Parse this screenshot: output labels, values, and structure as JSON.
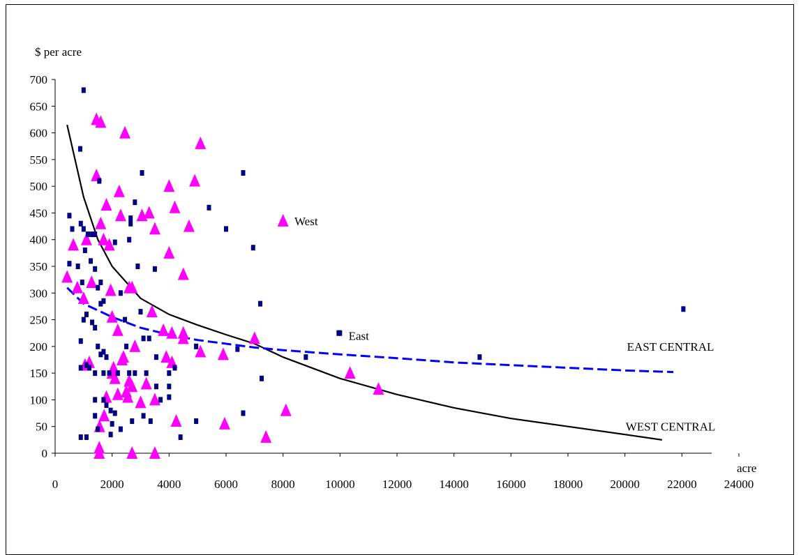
{
  "chart_data": {
    "type": "scatter",
    "ylabel": "$ per acre",
    "xlabel": "acre",
    "xlim": [
      0,
      24000
    ],
    "ylim": [
      0,
      700
    ],
    "x_ticks": [
      "0",
      "2000",
      "4000",
      "6000",
      "8000",
      "10000",
      "12000",
      "14000",
      "16000",
      "18000",
      "20000",
      "22000",
      "24000"
    ],
    "y_ticks": [
      "0",
      "50",
      "100",
      "150",
      "200",
      "250",
      "300",
      "350",
      "400",
      "450",
      "500",
      "550",
      "600",
      "650",
      "700"
    ],
    "grid": false,
    "legend_labels": [
      {
        "name": "West",
        "position": "upper-middle"
      },
      {
        "name": "East",
        "position": "middle"
      }
    ],
    "series": [
      {
        "name": "West",
        "marker": "triangle",
        "color": "#ff00ff",
        "points": [
          [
            420,
            330
          ],
          [
            640,
            390
          ],
          [
            780,
            310
          ],
          [
            1000,
            290
          ],
          [
            1100,
            400
          ],
          [
            1050,
            165
          ],
          [
            1200,
            170
          ],
          [
            1280,
            320
          ],
          [
            1450,
            625
          ],
          [
            1450,
            520
          ],
          [
            1600,
            620
          ],
          [
            1600,
            430
          ],
          [
            1700,
            400
          ],
          [
            1800,
            465
          ],
          [
            1900,
            390
          ],
          [
            1950,
            305
          ],
          [
            2000,
            255
          ],
          [
            1550,
            10
          ],
          [
            1550,
            0
          ],
          [
            1560,
            50
          ],
          [
            1720,
            70
          ],
          [
            1800,
            105
          ],
          [
            2000,
            150
          ],
          [
            2050,
            160
          ],
          [
            2100,
            140
          ],
          [
            2200,
            230
          ],
          [
            2250,
            490
          ],
          [
            2300,
            445
          ],
          [
            2350,
            175
          ],
          [
            2200,
            110
          ],
          [
            2400,
            180
          ],
          [
            2450,
            600
          ],
          [
            2500,
            115
          ],
          [
            2550,
            105
          ],
          [
            2600,
            310
          ],
          [
            2700,
            310
          ],
          [
            2600,
            135
          ],
          [
            2700,
            125
          ],
          [
            2700,
            0
          ],
          [
            2800,
            200
          ],
          [
            3000,
            95
          ],
          [
            3050,
            445
          ],
          [
            3200,
            130
          ],
          [
            3300,
            450
          ],
          [
            3400,
            265
          ],
          [
            3500,
            420
          ],
          [
            3500,
            100
          ],
          [
            3500,
            0
          ],
          [
            3800,
            230
          ],
          [
            3900,
            180
          ],
          [
            4000,
            500
          ],
          [
            4000,
            375
          ],
          [
            4100,
            170
          ],
          [
            4100,
            225
          ],
          [
            4200,
            460
          ],
          [
            4250,
            60
          ],
          [
            4500,
            335
          ],
          [
            4500,
            225
          ],
          [
            4500,
            215
          ],
          [
            4700,
            425
          ],
          [
            4900,
            510
          ],
          [
            5100,
            580
          ],
          [
            5100,
            190
          ],
          [
            5900,
            185
          ],
          [
            5950,
            55
          ],
          [
            7000,
            215
          ],
          [
            7400,
            30
          ],
          [
            8100,
            80
          ],
          [
            10350,
            150
          ],
          [
            11350,
            120
          ]
        ]
      },
      {
        "name": "East",
        "marker": "square",
        "color": "#000080",
        "points": [
          [
            1000,
            680
          ],
          [
            880,
            570
          ],
          [
            500,
            445
          ],
          [
            600,
            420
          ],
          [
            800,
            350
          ],
          [
            900,
            430
          ],
          [
            1000,
            420
          ],
          [
            1150,
            410
          ],
          [
            1300,
            410
          ],
          [
            1400,
            410
          ],
          [
            1050,
            380
          ],
          [
            1250,
            360
          ],
          [
            1400,
            345
          ],
          [
            500,
            355
          ],
          [
            950,
            320
          ],
          [
            1500,
            310
          ],
          [
            1600,
            320
          ],
          [
            1700,
            285
          ],
          [
            1600,
            280
          ],
          [
            1100,
            260
          ],
          [
            1000,
            250
          ],
          [
            1300,
            245
          ],
          [
            900,
            210
          ],
          [
            1400,
            235
          ],
          [
            1500,
            200
          ],
          [
            1700,
            190
          ],
          [
            1600,
            185
          ],
          [
            1800,
            180
          ],
          [
            1400,
            150
          ],
          [
            1700,
            150
          ],
          [
            1900,
            150
          ],
          [
            900,
            160
          ],
          [
            1100,
            165
          ],
          [
            1200,
            160
          ],
          [
            1400,
            100
          ],
          [
            1700,
            100
          ],
          [
            1800,
            90
          ],
          [
            1950,
            80
          ],
          [
            2000,
            55
          ],
          [
            1950,
            35
          ],
          [
            1400,
            70
          ],
          [
            1500,
            45
          ],
          [
            900,
            30
          ],
          [
            1100,
            30
          ],
          [
            2100,
            75
          ],
          [
            2300,
            45
          ],
          [
            1550,
            510
          ],
          [
            2100,
            395
          ],
          [
            2650,
            430
          ],
          [
            2650,
            440
          ],
          [
            2600,
            400
          ],
          [
            2800,
            470
          ],
          [
            2900,
            350
          ],
          [
            3050,
            525
          ],
          [
            2300,
            300
          ],
          [
            2450,
            250
          ],
          [
            2500,
            200
          ],
          [
            2200,
            150
          ],
          [
            2600,
            150
          ],
          [
            2800,
            150
          ],
          [
            3000,
            265
          ],
          [
            3100,
            215
          ],
          [
            3300,
            215
          ],
          [
            3200,
            150
          ],
          [
            3500,
            345
          ],
          [
            3550,
            180
          ],
          [
            3550,
            125
          ],
          [
            3700,
            100
          ],
          [
            4000,
            150
          ],
          [
            4000,
            125
          ],
          [
            4000,
            105
          ],
          [
            4200,
            160
          ],
          [
            3350,
            60
          ],
          [
            3100,
            70
          ],
          [
            2700,
            60
          ],
          [
            4400,
            30
          ],
          [
            4950,
            200
          ],
          [
            4950,
            60
          ],
          [
            5400,
            460
          ],
          [
            6000,
            420
          ],
          [
            6400,
            195
          ],
          [
            6600,
            525
          ],
          [
            6600,
            75
          ],
          [
            6950,
            385
          ],
          [
            7200,
            280
          ],
          [
            7250,
            140
          ],
          [
            8800,
            180
          ],
          [
            9950,
            225
          ],
          [
            14900,
            180
          ],
          [
            22050,
            270
          ]
        ]
      }
    ],
    "trend_lines": [
      {
        "name": "WEST CENTRAL",
        "style": "solid",
        "color": "#000000",
        "points": [
          [
            420,
            615
          ],
          [
            1000,
            480
          ],
          [
            1500,
            400
          ],
          [
            2000,
            350
          ],
          [
            3000,
            290
          ],
          [
            4000,
            260
          ],
          [
            5000,
            240
          ],
          [
            6000,
            222
          ],
          [
            7000,
            205
          ],
          [
            8000,
            180
          ],
          [
            10000,
            140
          ],
          [
            12000,
            110
          ],
          [
            14000,
            85
          ],
          [
            16000,
            65
          ],
          [
            18000,
            50
          ],
          [
            20000,
            35
          ],
          [
            21300,
            25
          ]
        ]
      },
      {
        "name": "EAST CENTRAL",
        "style": "dashed",
        "color": "#0000ff",
        "points": [
          [
            420,
            310
          ],
          [
            1000,
            280
          ],
          [
            2000,
            255
          ],
          [
            3000,
            235
          ],
          [
            4000,
            222
          ],
          [
            5000,
            212
          ],
          [
            6000,
            205
          ],
          [
            7000,
            198
          ],
          [
            8000,
            193
          ],
          [
            10000,
            185
          ],
          [
            12000,
            178
          ],
          [
            14000,
            170
          ],
          [
            16000,
            165
          ],
          [
            18000,
            160
          ],
          [
            20000,
            155
          ],
          [
            21700,
            152
          ]
        ]
      }
    ],
    "annotations": [
      {
        "text": "West",
        "x": 8400,
        "y": 435
      },
      {
        "text": "East",
        "x": 10300,
        "y": 220
      },
      {
        "text": "EAST CENTRAL",
        "x": 21600,
        "y": 200
      },
      {
        "text": "WEST CENTRAL",
        "x": 21600,
        "y": 50
      }
    ]
  }
}
